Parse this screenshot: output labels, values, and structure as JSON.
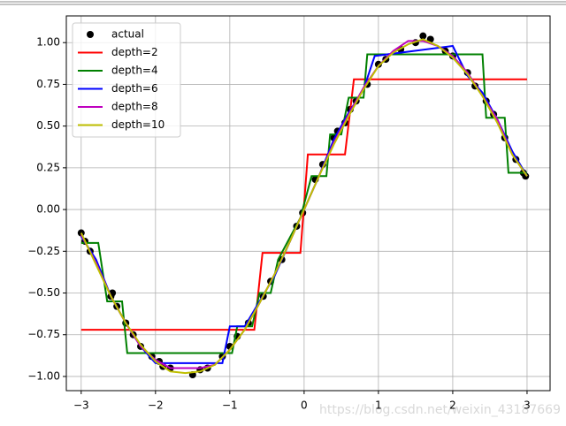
{
  "chart_data": {
    "type": "line",
    "xlim": [
      -3.2,
      3.31
    ],
    "ylim": [
      -1.085,
      1.16
    ],
    "xticks": [
      {
        "value": -3,
        "label": "−3"
      },
      {
        "value": -2,
        "label": "−2"
      },
      {
        "value": -1,
        "label": "−1"
      },
      0,
      1,
      2,
      3
    ],
    "yticks": [
      {
        "value": -1,
        "label": "−1.00"
      },
      {
        "value": -0.75,
        "label": "−0.75"
      },
      {
        "value": -0.5,
        "label": "−0.50"
      },
      {
        "value": -0.25,
        "label": "−0.25"
      },
      {
        "value": 0,
        "label": "0.00"
      },
      {
        "value": 0.25,
        "label": "0.25"
      },
      {
        "value": 0.5,
        "label": "0.50"
      },
      {
        "value": 0.75,
        "label": "0.75"
      },
      {
        "value": 1,
        "label": "1.00"
      }
    ],
    "grid": true,
    "legend": "upper left",
    "watermark": "https://blog.csdn.net/weixin_43187669",
    "series": [
      {
        "name": "actual",
        "style": "marker",
        "color": "#000000",
        "x": [
          -3,
          -2.95,
          -2.88,
          -2.6,
          -2.58,
          -2.52,
          -2.4,
          -2.3,
          -2.2,
          -2.05,
          -1.95,
          -1.9,
          -1.8,
          -1.5,
          -1.4,
          -1.3,
          -1.1,
          -1.0,
          -0.9,
          -0.75,
          -0.55,
          -0.45,
          -0.3,
          -0.1,
          -0.02,
          0.15,
          0.25,
          0.4,
          0.45,
          0.55,
          0.62,
          0.7,
          0.85,
          1.0,
          1.1,
          1.3,
          1.5,
          1.6,
          1.7,
          1.9,
          2.0,
          2.2,
          2.3,
          2.45,
          2.55,
          2.7,
          2.85,
          2.95,
          2.98
        ],
        "values": [
          -0.14,
          -0.19,
          -0.25,
          -0.52,
          -0.5,
          -0.58,
          -0.68,
          -0.75,
          -0.82,
          -0.88,
          -0.91,
          -0.94,
          -0.95,
          -0.99,
          -0.96,
          -0.95,
          -0.88,
          -0.82,
          -0.76,
          -0.68,
          -0.52,
          -0.43,
          -0.3,
          -0.1,
          -0.02,
          0.18,
          0.27,
          0.43,
          0.47,
          0.52,
          0.6,
          0.65,
          0.75,
          0.87,
          0.9,
          0.96,
          1.0,
          1.04,
          1.02,
          0.95,
          0.92,
          0.82,
          0.74,
          0.65,
          0.57,
          0.43,
          0.3,
          0.22,
          0.2
        ]
      },
      {
        "name": "depth=2",
        "style": "line",
        "color": "#ff0000",
        "x": [
          -3,
          -0.67,
          -0.56,
          -0.05,
          0.05,
          0.55,
          0.67,
          3
        ],
        "values": [
          -0.72,
          -0.72,
          -0.26,
          -0.26,
          0.33,
          0.33,
          0.78,
          0.78
        ]
      },
      {
        "name": "depth=4",
        "style": "line",
        "color": "#008000",
        "x": [
          -3,
          -2.77,
          -2.65,
          -2.45,
          -2.38,
          -0.97,
          -0.9,
          -0.7,
          -0.6,
          -0.45,
          -0.35,
          -0.05,
          0.1,
          0.3,
          0.35,
          0.5,
          0.6,
          0.8,
          0.85,
          2.4,
          2.45,
          2.7,
          2.75,
          3
        ],
        "values": [
          -0.2,
          -0.2,
          -0.55,
          -0.55,
          -0.86,
          -0.86,
          -0.7,
          -0.7,
          -0.5,
          -0.5,
          -0.3,
          -0.05,
          0.2,
          0.2,
          0.45,
          0.45,
          0.67,
          0.67,
          0.93,
          0.93,
          0.55,
          0.55,
          0.22,
          0.22
        ]
      },
      {
        "name": "depth=6",
        "style": "line",
        "color": "#0000ff",
        "x": [
          -3,
          -2.8,
          -2.6,
          -2.4,
          -2.2,
          -2.0,
          -1.1,
          -1.0,
          -0.8,
          -0.6,
          -0.4,
          -0.2,
          0,
          0.2,
          0.4,
          0.6,
          0.8,
          0.95,
          2.0,
          2.2,
          2.4,
          2.6,
          2.8,
          3
        ],
        "values": [
          -0.16,
          -0.3,
          -0.52,
          -0.68,
          -0.82,
          -0.92,
          -0.92,
          -0.7,
          -0.7,
          -0.55,
          -0.4,
          -0.2,
          0,
          0.2,
          0.42,
          0.58,
          0.72,
          0.92,
          0.98,
          0.8,
          0.7,
          0.54,
          0.35,
          0.2
        ]
      },
      {
        "name": "depth=8",
        "style": "line",
        "color": "#bf00bf",
        "x": [
          -3,
          -2.8,
          -2.6,
          -2.4,
          -2.2,
          -2.0,
          -1.8,
          -1.6,
          -1.4,
          -1.2,
          -1.0,
          -0.8,
          -0.6,
          -0.4,
          -0.2,
          0,
          0.2,
          0.4,
          0.6,
          0.8,
          1.0,
          1.2,
          1.4,
          1.6,
          1.8,
          2.0,
          2.2,
          2.4,
          2.6,
          2.8,
          3
        ],
        "values": [
          -0.15,
          -0.32,
          -0.52,
          -0.68,
          -0.82,
          -0.9,
          -0.95,
          -0.95,
          -0.95,
          -0.93,
          -0.84,
          -0.72,
          -0.56,
          -0.39,
          -0.2,
          0,
          0.2,
          0.4,
          0.57,
          0.73,
          0.86,
          0.95,
          1.01,
          1.01,
          0.98,
          0.92,
          0.82,
          0.68,
          0.54,
          0.33,
          0.2
        ]
      },
      {
        "name": "depth=10",
        "style": "line",
        "color": "#bfbf00",
        "x": [
          -3,
          -2.8,
          -2.6,
          -2.4,
          -2.2,
          -2.0,
          -1.8,
          -1.6,
          -1.4,
          -1.2,
          -1.0,
          -0.8,
          -0.6,
          -0.4,
          -0.2,
          0,
          0.2,
          0.4,
          0.6,
          0.8,
          1.0,
          1.2,
          1.4,
          1.6,
          1.8,
          2.0,
          2.2,
          2.4,
          2.6,
          2.8,
          3
        ],
        "values": [
          -0.14,
          -0.33,
          -0.52,
          -0.68,
          -0.81,
          -0.91,
          -0.97,
          -0.98,
          -0.97,
          -0.93,
          -0.84,
          -0.72,
          -0.56,
          -0.39,
          -0.2,
          0,
          0.2,
          0.39,
          0.56,
          0.72,
          0.86,
          0.94,
          0.99,
          1.02,
          0.98,
          0.91,
          0.81,
          0.68,
          0.52,
          0.33,
          0.2
        ]
      }
    ]
  }
}
